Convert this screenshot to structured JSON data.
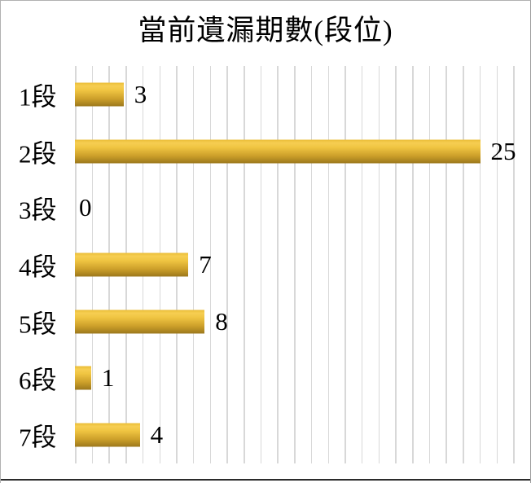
{
  "chart_data": {
    "type": "bar",
    "orientation": "horizontal",
    "title": "當前遺漏期數(段位)",
    "categories": [
      "1段",
      "2段",
      "3段",
      "4段",
      "5段",
      "6段",
      "7段"
    ],
    "values": [
      3,
      25,
      0,
      7,
      8,
      1,
      4
    ],
    "value_labels": [
      "3",
      "25",
      "0",
      "7",
      "8",
      "1",
      "4"
    ],
    "data_labels_shown": true,
    "xlim": [
      0,
      28
    ],
    "gridlines": {
      "axis": "x",
      "interval": 1,
      "color": "#d8d8d8"
    },
    "legend": "none",
    "colors": {
      "bar_top": "#eabd37",
      "bar_highlight": "#f6ce52",
      "bar_bottom": "#9c781c",
      "gridline": "#d8d8d8",
      "text": "#000000",
      "background": "#ffffff",
      "frame_border": "#b1b1b1",
      "bottom_rule": "#2b2b2b"
    }
  }
}
